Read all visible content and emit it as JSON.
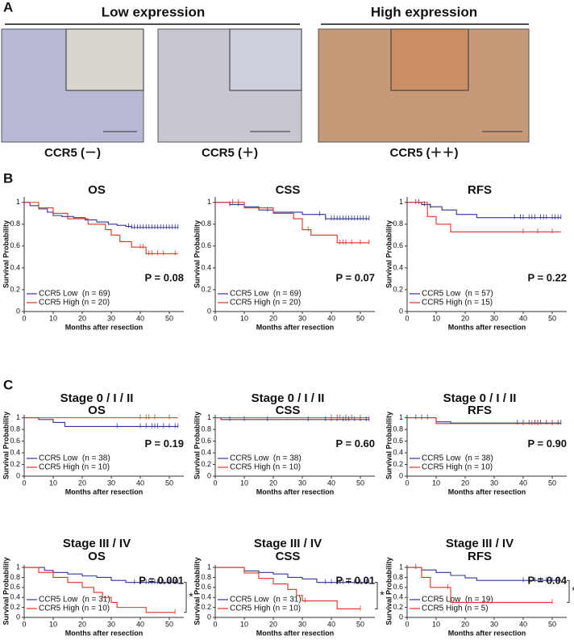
{
  "panel_a": {
    "label": "A",
    "groups": [
      "Low expression",
      "High expression"
    ],
    "images": [
      "CCR5 (－)",
      "CCR5 (＋)",
      "CCR5 (＋＋)"
    ]
  },
  "panel_labels": [
    "B",
    "C"
  ],
  "chart_data": [
    {
      "type": "step",
      "title": "OS",
      "p_value": "P = 0.08",
      "xlabel": "Months after resection",
      "ylabel": "Survival Probability",
      "xlim": [
        0,
        55
      ],
      "ylim": [
        0,
        1.05
      ],
      "xticks": [
        0,
        10,
        20,
        30,
        40,
        50
      ],
      "yticks": [
        0,
        0.2,
        0.4,
        0.6,
        0.8,
        1
      ],
      "series": [
        {
          "name": "CCR5 Low  (n = 69)",
          "color": "#33339a",
          "x": [
            0,
            2,
            5,
            8,
            10,
            13,
            17,
            21,
            25,
            29,
            32,
            35,
            37,
            53
          ],
          "values": [
            1,
            0.97,
            0.94,
            0.91,
            0.88,
            0.87,
            0.86,
            0.84,
            0.82,
            0.8,
            0.79,
            0.78,
            0.77,
            0.77
          ],
          "censor": [
            36,
            37,
            38,
            39,
            40,
            41,
            42,
            43,
            44,
            45,
            46,
            47,
            48,
            49,
            50,
            51,
            52,
            53
          ]
        },
        {
          "name": "CCR5 High (n = 20)",
          "color": "#dd3322",
          "x": [
            0,
            5,
            10,
            15,
            22,
            28,
            30,
            33,
            37,
            42,
            53
          ],
          "values": [
            1,
            0.95,
            0.9,
            0.85,
            0.8,
            0.75,
            0.7,
            0.64,
            0.59,
            0.53,
            0.53
          ],
          "censor": [
            40,
            41,
            43,
            44,
            46,
            48,
            52
          ]
        }
      ]
    },
    {
      "type": "step",
      "title": "CSS",
      "p_value": "P = 0.07",
      "xlabel": "Months after resection",
      "ylabel": "Survival Probability",
      "xlim": [
        0,
        55
      ],
      "ylim": [
        0,
        1.05
      ],
      "xticks": [
        0,
        10,
        20,
        30,
        40,
        50
      ],
      "yticks": [
        0,
        0.2,
        0.4,
        0.6,
        0.8,
        1
      ],
      "series": [
        {
          "name": "CCR5 Low  (n = 69)",
          "color": "#33339a",
          "x": [
            0,
            5,
            10,
            15,
            20,
            30,
            38,
            53
          ],
          "values": [
            1,
            0.98,
            0.96,
            0.93,
            0.91,
            0.89,
            0.85,
            0.85
          ],
          "censor": [
            5,
            8,
            18,
            36,
            38,
            40,
            41,
            42,
            43,
            44,
            45,
            46,
            47,
            48,
            49,
            50,
            51,
            52,
            53
          ]
        },
        {
          "name": "CCR5 High (n = 20)",
          "color": "#dd3322",
          "x": [
            0,
            10,
            20,
            27,
            30,
            33,
            42,
            53
          ],
          "values": [
            1,
            0.95,
            0.9,
            0.85,
            0.75,
            0.7,
            0.63,
            0.63
          ],
          "censor": [
            6,
            8,
            32,
            43,
            44,
            45,
            47,
            50,
            53
          ]
        }
      ]
    },
    {
      "type": "step",
      "title": "RFS",
      "p_value": "P = 0.22",
      "xlabel": "Months after resection",
      "ylabel": "Survival Probability",
      "xlim": [
        0,
        55
      ],
      "ylim": [
        0,
        1.05
      ],
      "xticks": [
        0,
        10,
        20,
        30,
        40,
        50
      ],
      "yticks": [
        0,
        0.2,
        0.4,
        0.6,
        0.8,
        1
      ],
      "series": [
        {
          "name": "CCR5 Low  (n = 57)",
          "color": "#33339a",
          "x": [
            0,
            5,
            8,
            12,
            17,
            24,
            53
          ],
          "values": [
            1,
            0.98,
            0.96,
            0.93,
            0.89,
            0.86,
            0.86
          ],
          "censor": [
            3,
            4,
            6,
            8,
            37,
            39,
            40,
            42,
            43,
            44,
            46,
            47,
            48,
            50,
            51,
            52,
            53
          ]
        },
        {
          "name": "CCR5 High (n = 15)",
          "color": "#dd3322",
          "x": [
            0,
            7,
            10,
            15,
            53
          ],
          "values": [
            1,
            0.87,
            0.8,
            0.73,
            0.73
          ],
          "censor": [
            40,
            45,
            50
          ]
        }
      ]
    },
    {
      "type": "step",
      "heading": "Stage  0 / I / II",
      "title": "OS",
      "p_value": "P = 0.19",
      "xlabel": "Months after resection",
      "ylabel": "Survival Probability",
      "xlim": [
        0,
        55
      ],
      "ylim": [
        0,
        1.05
      ],
      "xticks": [
        0,
        10,
        20,
        30,
        40,
        50
      ],
      "yticks": [
        0,
        0.2,
        0.4,
        0.6,
        0.8,
        1
      ],
      "series": [
        {
          "name": "CCR5 Low  (n = 38)",
          "color": "#33339a",
          "x": [
            0,
            5,
            10,
            14,
            53
          ],
          "values": [
            1,
            0.97,
            0.92,
            0.85,
            0.85
          ],
          "censor": [
            32,
            40,
            42,
            44,
            45,
            46,
            48,
            50,
            52,
            53
          ]
        },
        {
          "name": "CCR5 High (n = 10)",
          "color": "#dd3322",
          "x": [
            0,
            53
          ],
          "values": [
            1,
            1
          ],
          "censor": [
            40,
            42,
            43,
            45,
            50
          ]
        }
      ]
    },
    {
      "type": "step",
      "heading": "Stage  0 / I / II",
      "title": "CSS",
      "p_value": "P = 0.60",
      "xlabel": "Months after resection",
      "ylabel": "Survival Probability",
      "xlim": [
        0,
        55
      ],
      "ylim": [
        0,
        1.05
      ],
      "xticks": [
        0,
        10,
        20,
        30,
        40,
        50
      ],
      "yticks": [
        0,
        0.2,
        0.4,
        0.6,
        0.8,
        1
      ],
      "series": [
        {
          "name": "CCR5 Low  (n = 38)",
          "color": "#33339a",
          "x": [
            0,
            2,
            53
          ],
          "values": [
            1,
            0.97,
            0.97
          ],
          "censor": [
            5,
            10,
            18,
            32,
            38,
            40,
            42,
            44,
            45,
            46,
            48,
            50,
            52,
            53
          ]
        },
        {
          "name": "CCR5 High (n = 10)",
          "color": "#dd3322",
          "x": [
            0,
            53
          ],
          "values": [
            1,
            1
          ],
          "censor": [
            40,
            42,
            43,
            45,
            47,
            50
          ]
        }
      ]
    },
    {
      "type": "step",
      "heading": "Stage  0 / I / II",
      "title": "RFS",
      "p_value": "P = 0.90",
      "xlabel": "Months after resection",
      "ylabel": "Survival Probability",
      "xlim": [
        0,
        55
      ],
      "ylim": [
        0,
        1.05
      ],
      "xticks": [
        0,
        10,
        20,
        30,
        40,
        50
      ],
      "yticks": [
        0,
        0.2,
        0.4,
        0.6,
        0.8,
        1
      ],
      "series": [
        {
          "name": "CCR5 Low  (n = 38)",
          "color": "#33339a",
          "x": [
            0,
            10,
            15,
            53
          ],
          "values": [
            1,
            0.93,
            0.91,
            0.91
          ],
          "censor": [
            3,
            5,
            7,
            38,
            40,
            42,
            44,
            45,
            46,
            48,
            50,
            52,
            53
          ]
        },
        {
          "name": "CCR5 High (n = 10)",
          "color": "#dd3322",
          "x": [
            0,
            10,
            53
          ],
          "values": [
            1,
            0.9,
            0.9
          ],
          "censor": [
            40,
            43,
            45,
            50
          ]
        }
      ]
    },
    {
      "type": "step",
      "heading": "Stage III / IV",
      "title": "OS",
      "p_value": "P = 0.001",
      "annotation": "*",
      "xlabel": "Months after resection",
      "ylabel": "Survival Probability",
      "xlim": [
        0,
        55
      ],
      "ylim": [
        0,
        1.05
      ],
      "xticks": [
        0,
        10,
        20,
        30,
        40,
        50
      ],
      "yticks": [
        0,
        0.2,
        0.4,
        0.6,
        0.8,
        1
      ],
      "series": [
        {
          "name": "CCR5 Low  (n = 31)",
          "color": "#33339a",
          "x": [
            0,
            7,
            10,
            15,
            20,
            25,
            30,
            35,
            53
          ],
          "values": [
            1,
            0.94,
            0.9,
            0.87,
            0.83,
            0.8,
            0.74,
            0.7,
            0.7
          ],
          "censor": [
            38,
            40,
            42,
            43,
            44,
            45,
            46,
            48,
            50,
            52,
            53
          ]
        },
        {
          "name": "CCR5 High (n = 10)",
          "color": "#dd3322",
          "x": [
            0,
            5,
            10,
            15,
            20,
            24,
            27,
            30,
            32,
            42,
            52
          ],
          "values": [
            1,
            0.9,
            0.8,
            0.7,
            0.6,
            0.5,
            0.4,
            0.3,
            0.2,
            0.1,
            0.1
          ],
          "censor": [
            52
          ]
        }
      ]
    },
    {
      "type": "step",
      "heading": "Stage III / IV",
      "title": "CSS",
      "p_value": "P = 0.01",
      "annotation": "*",
      "xlabel": "Months after resection",
      "ylabel": "Survival Probability",
      "xlim": [
        0,
        55
      ],
      "ylim": [
        0,
        1.05
      ],
      "xticks": [
        0,
        10,
        20,
        30,
        40,
        50
      ],
      "yticks": [
        0,
        0.2,
        0.4,
        0.6,
        0.8,
        1
      ],
      "series": [
        {
          "name": "CCR5 Low  (n = 31)",
          "color": "#33339a",
          "x": [
            0,
            10,
            15,
            20,
            25,
            30,
            35,
            53
          ],
          "values": [
            1,
            0.93,
            0.9,
            0.87,
            0.8,
            0.77,
            0.7,
            0.7
          ],
          "censor": [
            38,
            40,
            42,
            43,
            44,
            46,
            48,
            50,
            52,
            53
          ]
        },
        {
          "name": "CCR5 High (n = 10)",
          "color": "#dd3322",
          "x": [
            0,
            10,
            15,
            20,
            25,
            28,
            30,
            42,
            50
          ],
          "values": [
            1,
            0.89,
            0.78,
            0.67,
            0.56,
            0.44,
            0.33,
            0.17,
            0.17
          ],
          "censor": [
            31,
            50
          ]
        }
      ]
    },
    {
      "type": "step",
      "heading": "Stage III / IV",
      "title": "RFS",
      "p_value": "P = 0.04",
      "annotation": "*",
      "xlabel": "Months after resection",
      "ylabel": "Survival Probability",
      "xlim": [
        0,
        55
      ],
      "ylim": [
        0,
        1.05
      ],
      "xticks": [
        0,
        10,
        20,
        30,
        40,
        50
      ],
      "yticks": [
        0,
        0.2,
        0.4,
        0.6,
        0.8,
        1
      ],
      "series": [
        {
          "name": "CCR5 Low  (n = 19)",
          "color": "#33339a",
          "x": [
            0,
            5,
            10,
            15,
            20,
            24,
            53
          ],
          "values": [
            1,
            0.95,
            0.9,
            0.84,
            0.79,
            0.74,
            0.74
          ],
          "censor": [
            3,
            40,
            42,
            44,
            46,
            48,
            50,
            52
          ]
        },
        {
          "name": "CCR5 High (n = 5)",
          "color": "#dd3322",
          "x": [
            0,
            5,
            8,
            15,
            50
          ],
          "values": [
            1,
            0.8,
            0.6,
            0.3,
            0.3
          ],
          "censor": [
            14,
            50
          ]
        }
      ]
    }
  ]
}
